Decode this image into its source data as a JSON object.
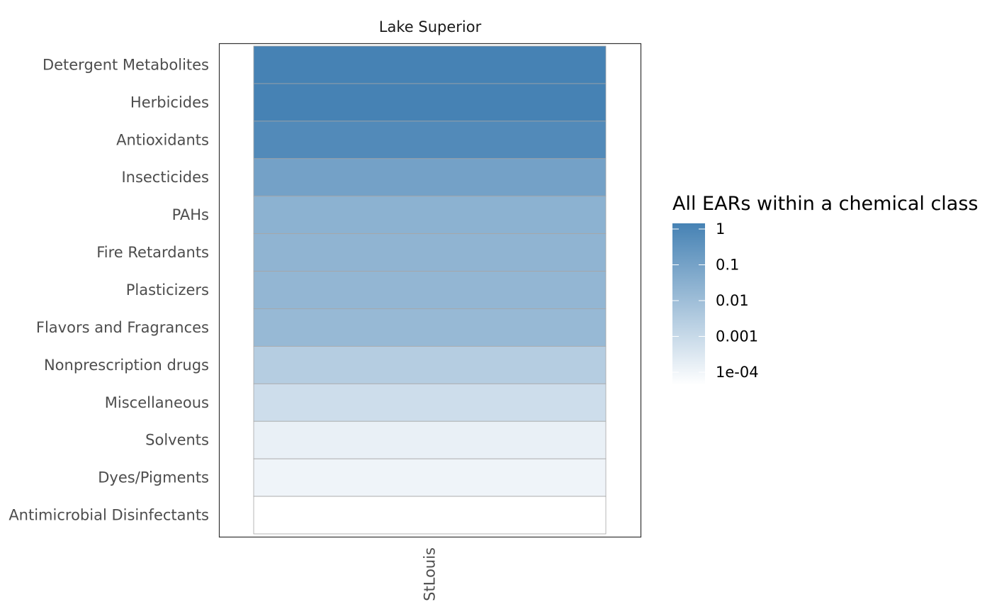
{
  "chart_data": {
    "type": "heatmap",
    "facet_title": "Lake Superior",
    "x_categories": [
      "StLouis"
    ],
    "y_categories": [
      "Detergent Metabolites",
      "Herbicides",
      "Antioxidants",
      "Insecticides",
      "PAHs",
      "Fire Retardants",
      "Plasticizers",
      "Flavors and Fragrances",
      "Nonprescription drugs",
      "Miscellaneous",
      "Solvents",
      "Dyes/Pigments",
      "Antimicrobial Disinfectants"
    ],
    "values": [
      [
        1.0
      ],
      [
        1.0
      ],
      [
        0.55
      ],
      [
        0.1
      ],
      [
        0.03
      ],
      [
        0.025
      ],
      [
        0.022
      ],
      [
        0.018
      ],
      [
        0.004
      ],
      [
        0.0012
      ],
      [
        0.0003
      ],
      [
        0.00022
      ],
      [
        0.0001
      ]
    ],
    "color_scale": {
      "type": "log",
      "low_color": "#ffffff",
      "high_color": "#4682b4",
      "range": [
        0.0001,
        1
      ]
    },
    "legend": {
      "title": "All EARs within a chemical class",
      "placement": "right",
      "ticks": [
        {
          "value": 1,
          "label": "1"
        },
        {
          "value": 0.1,
          "label": "0.1"
        },
        {
          "value": 0.01,
          "label": "0.01"
        },
        {
          "value": 0.001,
          "label": "0.001"
        },
        {
          "value": 0.0001,
          "label": "1e-04"
        }
      ]
    },
    "xlabel": "",
    "ylabel": "",
    "grid": false
  }
}
